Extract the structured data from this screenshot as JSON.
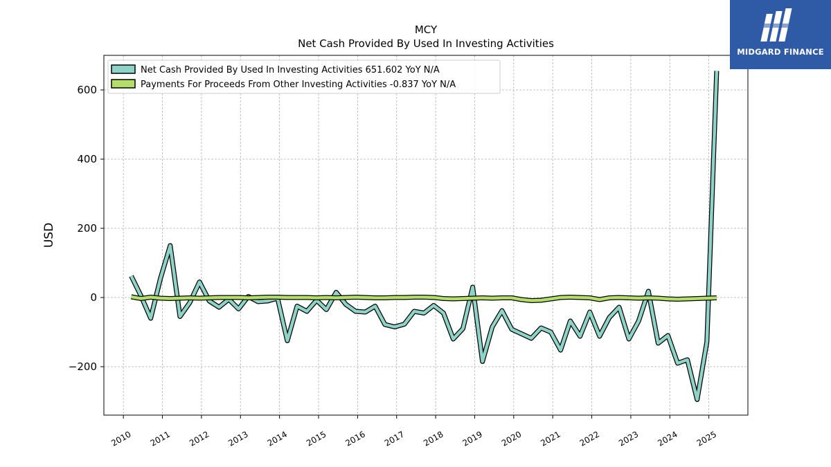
{
  "brand": {
    "name": "MIDGARD FINANCE",
    "color": "#2f5aa6"
  },
  "chart_data": {
    "type": "line",
    "title": "MCY",
    "subtitle": "Net Cash Provided By Used In Investing Activities",
    "xlabel": "",
    "ylabel": "USD",
    "xlim": [
      2009.5,
      2026.0
    ],
    "ylim": [
      -340,
      700
    ],
    "x_ticks": [
      2010,
      2011,
      2012,
      2013,
      2014,
      2015,
      2016,
      2017,
      2018,
      2019,
      2020,
      2021,
      2022,
      2023,
      2024,
      2025
    ],
    "y_ticks": [
      -200,
      0,
      200,
      400,
      600
    ],
    "y_tick_labels": [
      "−200",
      "0",
      "200",
      "400",
      "600"
    ],
    "grid": true,
    "legend_position": "top-left",
    "series": [
      {
        "name": "Net Cash Provided By Used In Investing Activities",
        "legend_label": "Net Cash Provided By Used In Investing Activities  651.602 YoY N/A",
        "color": "#8dd3c7",
        "x": [
          2010.2,
          2010.45,
          2010.7,
          2010.95,
          2011.2,
          2011.45,
          2011.7,
          2011.95,
          2012.2,
          2012.45,
          2012.7,
          2012.95,
          2013.2,
          2013.45,
          2013.7,
          2013.95,
          2014.2,
          2014.45,
          2014.7,
          2014.95,
          2015.2,
          2015.45,
          2015.7,
          2015.95,
          2016.2,
          2016.45,
          2016.7,
          2016.95,
          2017.2,
          2017.45,
          2017.7,
          2017.95,
          2018.2,
          2018.45,
          2018.7,
          2018.95,
          2019.2,
          2019.45,
          2019.7,
          2019.95,
          2020.2,
          2020.45,
          2020.7,
          2020.95,
          2021.2,
          2021.45,
          2021.7,
          2021.95,
          2022.2,
          2022.45,
          2022.7,
          2022.95,
          2023.2,
          2023.45,
          2023.7,
          2023.95,
          2024.2,
          2024.45,
          2024.7,
          2024.95,
          2025.2
        ],
        "values": [
          62,
          5,
          -60,
          55,
          150,
          -55,
          -15,
          45,
          -10,
          -28,
          -5,
          -33,
          3,
          -12,
          -10,
          -2,
          -125,
          -25,
          -40,
          -8,
          -35,
          15,
          -20,
          -40,
          -42,
          -25,
          -78,
          -85,
          -77,
          -40,
          -45,
          -23,
          -45,
          -120,
          -90,
          30,
          -185,
          -85,
          -38,
          -92,
          -105,
          -118,
          -88,
          -100,
          -152,
          -68,
          -112,
          -42,
          -112,
          -58,
          -28,
          -120,
          -68,
          18,
          -132,
          -110,
          -190,
          -180,
          -295,
          -128,
          655
        ]
      },
      {
        "name": "Payments For Proceeds From Other Investing Activities",
        "legend_label": "Payments For Proceeds From Other Investing Activities  -0.837 YoY N/A",
        "color": "#b3de69",
        "x": [
          2010.2,
          2010.45,
          2010.7,
          2010.95,
          2011.2,
          2011.45,
          2011.7,
          2011.95,
          2012.2,
          2012.45,
          2012.7,
          2012.95,
          2013.2,
          2013.45,
          2013.7,
          2013.95,
          2014.2,
          2014.45,
          2014.7,
          2014.95,
          2015.2,
          2015.45,
          2015.7,
          2015.95,
          2016.2,
          2016.45,
          2016.7,
          2016.95,
          2017.2,
          2017.45,
          2017.7,
          2017.95,
          2018.2,
          2018.45,
          2018.7,
          2018.95,
          2019.2,
          2019.45,
          2019.7,
          2019.95,
          2020.2,
          2020.45,
          2020.7,
          2020.95,
          2021.2,
          2021.45,
          2021.7,
          2021.95,
          2022.2,
          2022.45,
          2022.7,
          2022.95,
          2023.2,
          2023.45,
          2023.7,
          2023.95,
          2024.2,
          2024.45,
          2024.7,
          2024.95,
          2025.2
        ],
        "values": [
          2,
          -3,
          1,
          -2,
          -3,
          -2,
          -1,
          -2,
          -1,
          0,
          0,
          0,
          -1,
          0,
          1,
          1,
          0,
          0,
          0,
          -1,
          0,
          -1,
          0,
          1,
          0,
          -1,
          -1,
          0,
          0,
          1,
          1,
          0,
          -3,
          -4,
          -3,
          -2,
          -1,
          -2,
          -1,
          -1,
          -6,
          -9,
          -8,
          -4,
          0,
          1,
          0,
          -1,
          -6,
          -1,
          0,
          -1,
          -2,
          -1,
          -2,
          -4,
          -5,
          -4,
          -3,
          -2,
          -1
        ]
      }
    ]
  }
}
